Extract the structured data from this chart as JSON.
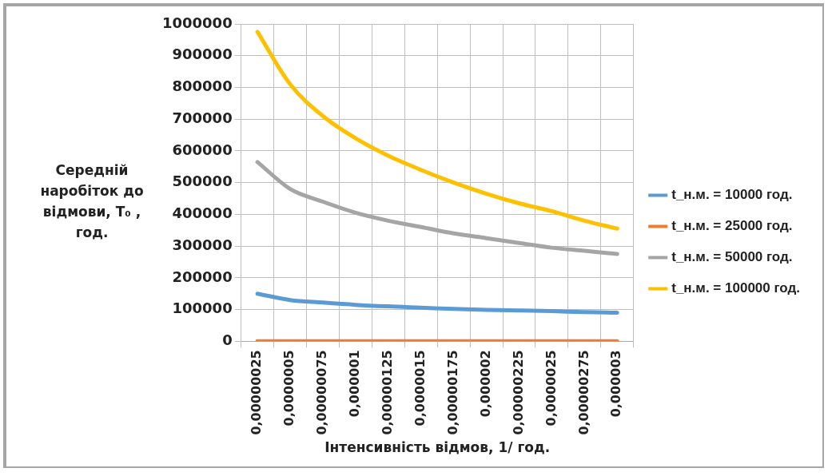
{
  "chart_data": {
    "type": "line",
    "xlabel": "Інтенсивність відмов, 1/ год.",
    "ylabel": "Середній наробіток до відмови, Т₀ , год.",
    "categories": [
      "0,00000025",
      "0,0000005",
      "0,00000075",
      "0,000001",
      "0,00000125",
      "0,0000015",
      "0,00000175",
      "0,000002",
      "0,00000225",
      "0,0000025",
      "0,00000275",
      "0,000003"
    ],
    "series": [
      {
        "name": "t_н.м. = 10000 год.",
        "color": "#5b9bd5",
        "values": [
          150000,
          130000,
          122000,
          115000,
          110000,
          106000,
          102000,
          99000,
          97000,
          95000,
          92000,
          90000
        ]
      },
      {
        "name": "t_н.м. = 25000 год.",
        "color": "#ed7d31",
        "values": [
          0,
          0,
          0,
          0,
          0,
          0,
          0,
          0,
          0,
          0,
          0,
          0
        ]
      },
      {
        "name": "t_н.м. = 50000 год.",
        "color": "#a5a5a5",
        "values": [
          565000,
          480000,
          440000,
          405000,
          380000,
          360000,
          340000,
          325000,
          310000,
          295000,
          285000,
          275000
        ]
      },
      {
        "name": "t_н.м. = 100000 год.",
        "color": "#ffc000",
        "values": [
          975000,
          810000,
          710000,
          640000,
          585000,
          540000,
          500000,
          465000,
          435000,
          410000,
          380000,
          355000
        ]
      }
    ],
    "ylim": [
      0,
      1000000
    ],
    "yticks": [
      0,
      100000,
      200000,
      300000,
      400000,
      500000,
      600000,
      700000,
      800000,
      900000,
      1000000
    ],
    "grid": true,
    "legend": "right",
    "marker": "none",
    "line_style": "solid"
  }
}
